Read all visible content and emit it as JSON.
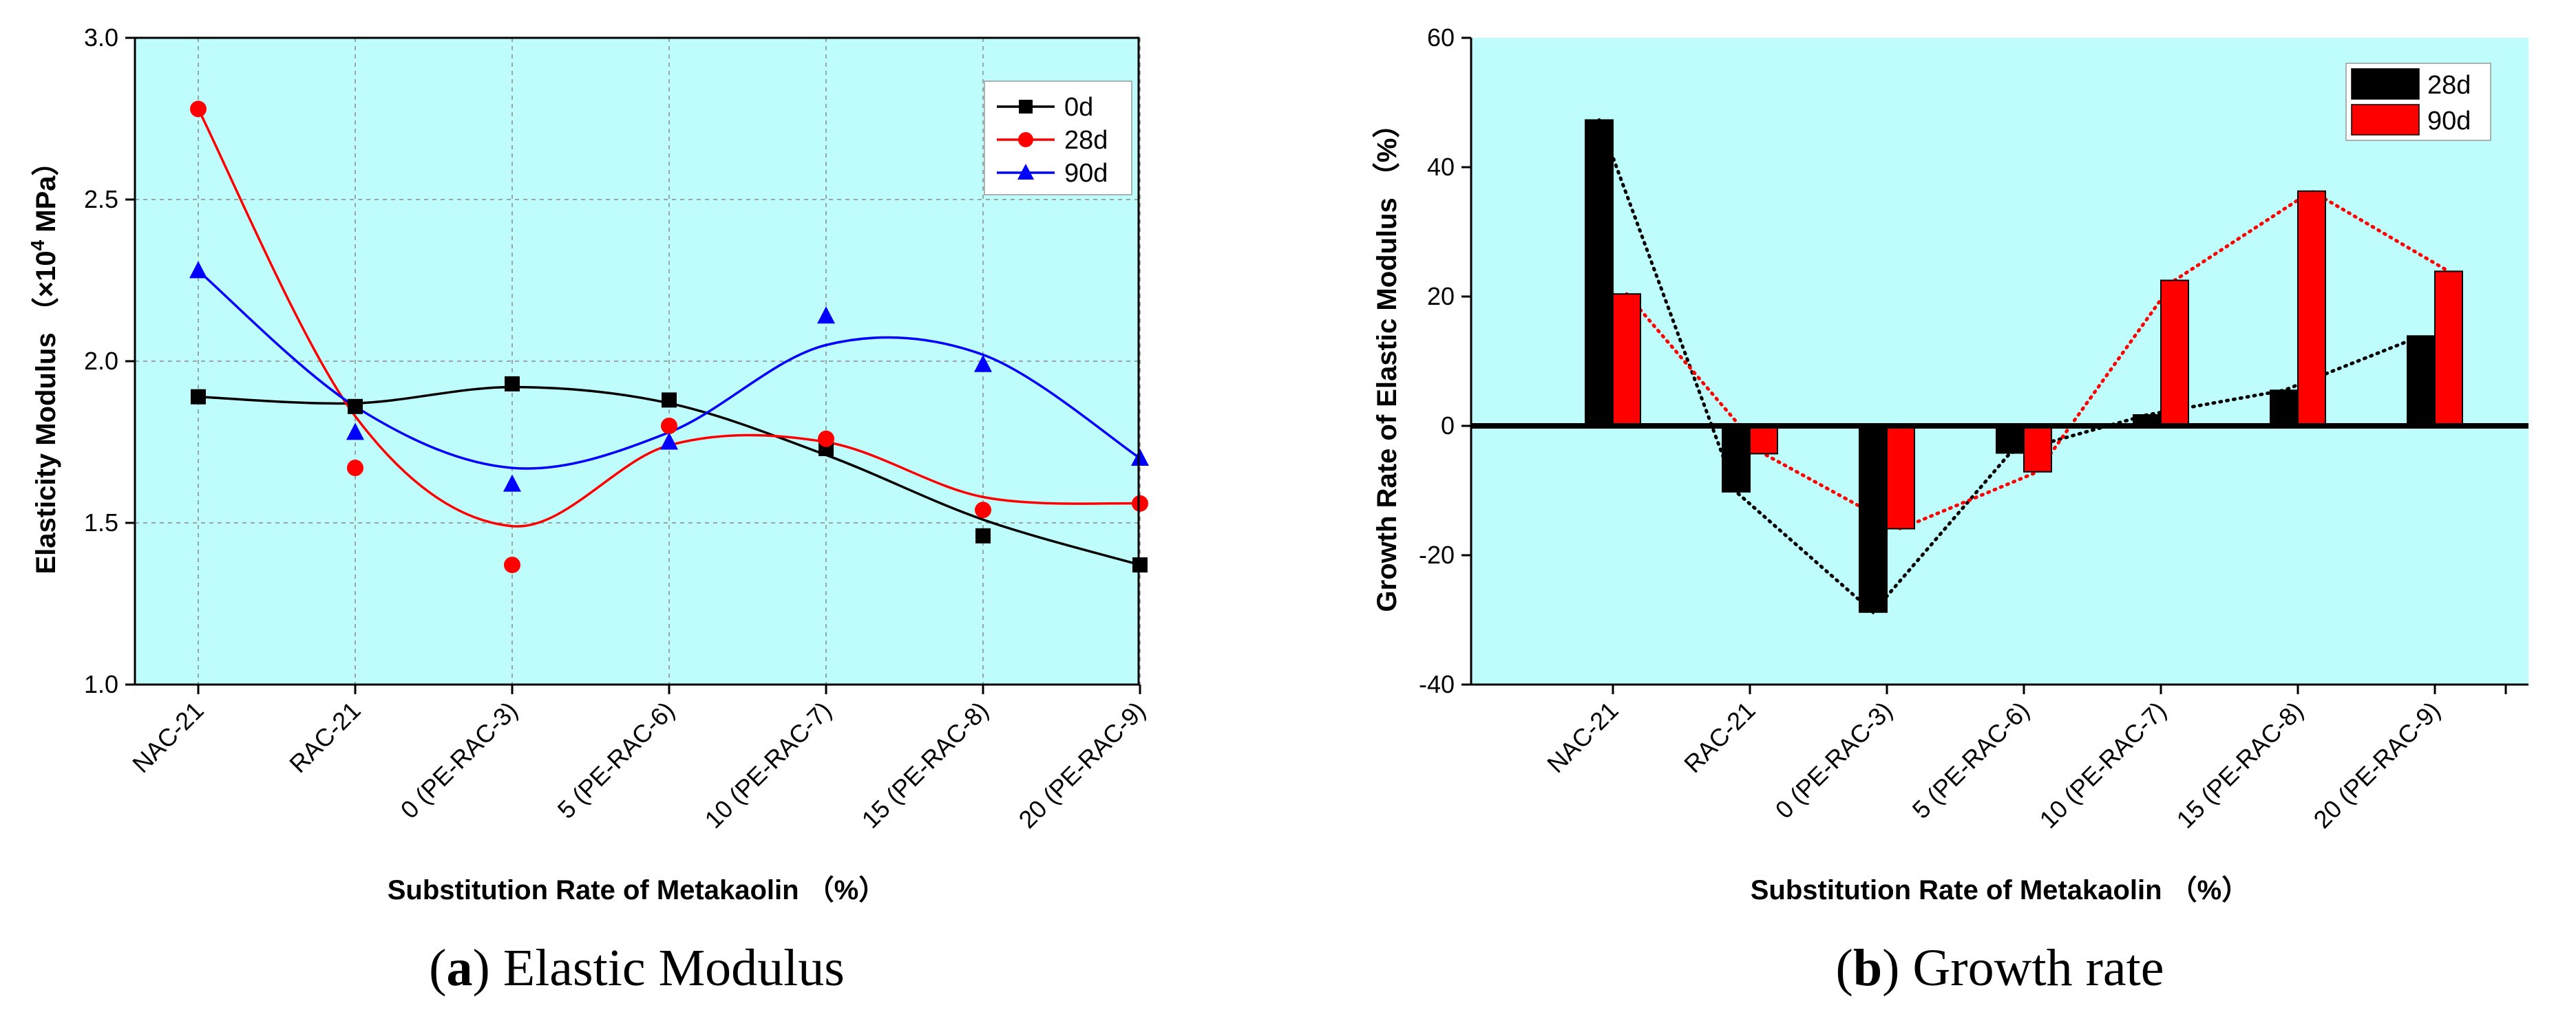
{
  "colors": {
    "plot_bg": "#bffdfd",
    "grid": "#9aa5a5",
    "series_0d": "#000000",
    "series_28d": "#ff0000",
    "series_90d": "#0000ff",
    "bar_28d": "#000000",
    "bar_90d": "#ff0000"
  },
  "chart_data": [
    {
      "type": "scatter",
      "caption_letter": "a",
      "caption_text": "Elastic Modulus",
      "xlabel": "Substitution Rate of Metakaolin （%）",
      "ylabel_prefix": "Elasticity Modulus （×10",
      "ylabel_sup": "4",
      "ylabel_suffix": " MPa）",
      "categories": [
        "NAC-21",
        "RAC-21",
        "0 (PE-RAC-3)",
        "5 (PE-RAC-6)",
        "10 (PE-RAC-7)",
        "15 (PE-RAC-8)",
        "20 (PE-RAC-9)"
      ],
      "ylim": [
        1.0,
        3.0
      ],
      "yticks": [
        "1.0",
        "1.5",
        "2.0",
        "2.5",
        "3.0"
      ],
      "grid": true,
      "legend_position": "top-right",
      "series": [
        {
          "name": "0d",
          "marker": "square",
          "values": [
            1.89,
            1.86,
            1.93,
            1.88,
            1.73,
            1.46,
            1.37
          ],
          "fit": [
            1.89,
            1.87,
            1.92,
            1.87,
            1.71,
            1.51,
            1.37
          ]
        },
        {
          "name": "28d",
          "marker": "circle",
          "values": [
            2.78,
            1.67,
            1.37,
            1.8,
            1.76,
            1.54,
            1.56
          ],
          "fit": [
            2.78,
            1.83,
            1.49,
            1.74,
            1.75,
            1.58,
            1.56
          ]
        },
        {
          "name": "90d",
          "marker": "triangle",
          "values": [
            2.28,
            1.78,
            1.62,
            1.75,
            2.14,
            1.99,
            1.7
          ],
          "fit": [
            2.28,
            1.86,
            1.67,
            1.78,
            2.05,
            2.02,
            1.7
          ]
        }
      ]
    },
    {
      "type": "bar",
      "caption_letter": "b",
      "caption_text": "Growth rate",
      "xlabel": "Substitution Rate of Metakaolin （%）",
      "ylabel": "Growth Rate of Elastic Modulus （%）",
      "categories": [
        "NAC-21",
        "RAC-21",
        "0 (PE-RAC-3)",
        "5 (PE-RAC-6)",
        "10 (PE-RAC-7)",
        "15 (PE-RAC-8)",
        "20 (PE-RAC-9)"
      ],
      "ylim": [
        -40,
        60
      ],
      "yticks": [
        "-40",
        "-20",
        "0",
        "20",
        "40",
        "60"
      ],
      "grid": false,
      "legend_position": "top-right",
      "series": [
        {
          "name": "28d",
          "values": [
            47.3,
            -10.2,
            -28.8,
            -4.2,
            1.7,
            5.5,
            13.9
          ]
        },
        {
          "name": "90d",
          "values": [
            20.4,
            -4.3,
            -15.9,
            -7.1,
            22.5,
            36.3,
            23.9
          ]
        }
      ]
    }
  ]
}
